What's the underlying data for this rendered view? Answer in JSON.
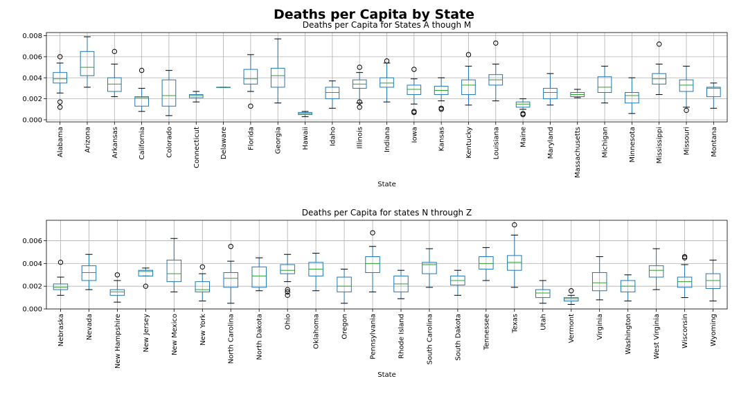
{
  "figure": {
    "title": "Deaths per Capita by State"
  },
  "colors": {
    "box": "#1f77b4",
    "median": "#2ca02c",
    "whisker": "#000000",
    "grid": "#b0b0b0",
    "axis": "#000000"
  },
  "chart_data": [
    {
      "type": "boxplot",
      "title": "Deaths per Capita for States A though M",
      "xlabel": "State",
      "ylabel": "",
      "ylim": [
        -0.0002,
        0.0083
      ],
      "yticks": [
        0.0,
        0.002,
        0.004,
        0.006,
        0.008
      ],
      "ytick_labels": [
        "0.000",
        "0.002",
        "0.004",
        "0.006",
        "0.008"
      ],
      "grid": true,
      "categories": [
        "Alabama",
        "Arizona",
        "Arkansas",
        "California",
        "Colorado",
        "Connecticut",
        "Delaware",
        "Florida",
        "Georgia",
        "Hawaii",
        "Idaho",
        "Illinois",
        "Indiana",
        "Iowa",
        "Kansas",
        "Kentucky",
        "Louisiana",
        "Maine",
        "Maryland",
        "Massachusetts",
        "Michigan",
        "Minnesota",
        "Mississippi",
        "Missouri",
        "Montana"
      ],
      "boxes": [
        {
          "whislo": 0.00255,
          "q1": 0.0035,
          "med": 0.0039,
          "q3": 0.0045,
          "whishi": 0.0054,
          "fliers": [
            0.006,
            0.0017,
            0.0012
          ]
        },
        {
          "whislo": 0.0031,
          "q1": 0.0042,
          "med": 0.005,
          "q3": 0.0065,
          "whishi": 0.0079,
          "fliers": []
        },
        {
          "whislo": 0.0022,
          "q1": 0.0027,
          "med": 0.0034,
          "q3": 0.004,
          "whishi": 0.0053,
          "fliers": [
            0.0065
          ]
        },
        {
          "whislo": 0.0008,
          "q1": 0.0013,
          "med": 0.0021,
          "q3": 0.0022,
          "whishi": 0.003,
          "fliers": [
            0.0047
          ]
        },
        {
          "whislo": 0.0004,
          "q1": 0.0013,
          "med": 0.0023,
          "q3": 0.0038,
          "whishi": 0.0047,
          "fliers": []
        },
        {
          "whislo": 0.0017,
          "q1": 0.0021,
          "med": 0.0023,
          "q3": 0.0024,
          "whishi": 0.0027,
          "fliers": []
        },
        {
          "whislo": 0.0031,
          "q1": 0.0031,
          "med": 0.0031,
          "q3": 0.0031,
          "whishi": 0.0031,
          "fliers": []
        },
        {
          "whislo": 0.0027,
          "q1": 0.0034,
          "med": 0.0039,
          "q3": 0.0048,
          "whishi": 0.0062,
          "fliers": [
            0.0013
          ]
        },
        {
          "whislo": 0.0016,
          "q1": 0.0031,
          "med": 0.0042,
          "q3": 0.0049,
          "whishi": 0.0077,
          "fliers": []
        },
        {
          "whislo": 0.0003,
          "q1": 0.0005,
          "med": 0.0006,
          "q3": 0.0007,
          "whishi": 0.0008,
          "fliers": []
        },
        {
          "whislo": 0.0011,
          "q1": 0.002,
          "med": 0.0026,
          "q3": 0.0031,
          "whishi": 0.0037,
          "fliers": []
        },
        {
          "whislo": 0.0016,
          "q1": 0.003,
          "med": 0.0034,
          "q3": 0.0038,
          "whishi": 0.0045,
          "fliers": [
            0.005,
            0.0017,
            0.0012
          ]
        },
        {
          "whislo": 0.0017,
          "q1": 0.0031,
          "med": 0.0035,
          "q3": 0.004,
          "whishi": 0.0054,
          "fliers": [
            0.0056
          ]
        },
        {
          "whislo": 0.0015,
          "q1": 0.0024,
          "med": 0.0029,
          "q3": 0.0033,
          "whishi": 0.0039,
          "fliers": [
            0.0048,
            0.0008,
            0.0007
          ]
        },
        {
          "whislo": 0.0018,
          "q1": 0.0024,
          "med": 0.0028,
          "q3": 0.0032,
          "whishi": 0.004,
          "fliers": [
            0.0011,
            0.001
          ]
        },
        {
          "whislo": 0.0014,
          "q1": 0.0024,
          "med": 0.0033,
          "q3": 0.0038,
          "whishi": 0.0051,
          "fliers": [
            0.0062
          ]
        },
        {
          "whislo": 0.0018,
          "q1": 0.0033,
          "med": 0.0038,
          "q3": 0.0043,
          "whishi": 0.0053,
          "fliers": [
            0.0073
          ]
        },
        {
          "whislo": 0.001,
          "q1": 0.0012,
          "med": 0.0015,
          "q3": 0.0017,
          "whishi": 0.002,
          "fliers": [
            0.0006,
            0.0005
          ]
        },
        {
          "whislo": 0.0014,
          "q1": 0.002,
          "med": 0.0026,
          "q3": 0.003,
          "whishi": 0.0044,
          "fliers": []
        },
        {
          "whislo": 0.0021,
          "q1": 0.0022,
          "med": 0.0024,
          "q3": 0.0026,
          "whishi": 0.0029,
          "fliers": []
        },
        {
          "whislo": 0.0016,
          "q1": 0.0026,
          "med": 0.0031,
          "q3": 0.0041,
          "whishi": 0.0051,
          "fliers": []
        },
        {
          "whislo": 0.0006,
          "q1": 0.0016,
          "med": 0.0023,
          "q3": 0.0026,
          "whishi": 0.004,
          "fliers": []
        },
        {
          "whislo": 0.0024,
          "q1": 0.0034,
          "med": 0.0039,
          "q3": 0.0044,
          "whishi": 0.0053,
          "fliers": [
            0.0072
          ]
        },
        {
          "whislo": 0.0012,
          "q1": 0.0027,
          "med": 0.0033,
          "q3": 0.0038,
          "whishi": 0.0051,
          "fliers": [
            0.0009
          ]
        },
        {
          "whislo": 0.0011,
          "q1": 0.0022,
          "med": 0.003,
          "q3": 0.0031,
          "whishi": 0.0035,
          "fliers": []
        }
      ]
    },
    {
      "type": "boxplot",
      "title": "Deaths per Capita for states N through Z",
      "xlabel": "State",
      "ylabel": "",
      "ylim": [
        0.0,
        0.0078
      ],
      "yticks": [
        0.0,
        0.002,
        0.004,
        0.006
      ],
      "ytick_labels": [
        "0.000",
        "0.002",
        "0.004",
        "0.006"
      ],
      "grid": true,
      "categories": [
        "Nebraska",
        "Nevada",
        "New Hampshire",
        "New Jersey",
        "New Mexico",
        "New York",
        "North Carolina",
        "North Dakota",
        "Ohio",
        "Oklahoma",
        "Oregon",
        "Pennsylvania",
        "Rhode Island",
        "South Carolina",
        "South Dakota",
        "Tennessee",
        "Texas",
        "Utah",
        "Vermont",
        "Virginia",
        "Washington",
        "West Virginia",
        "Wisconsin",
        "Wyoming"
      ],
      "boxes": [
        {
          "whislo": 0.0012,
          "q1": 0.0017,
          "med": 0.0019,
          "q3": 0.0022,
          "whishi": 0.0028,
          "fliers": [
            0.0041
          ]
        },
        {
          "whislo": 0.0017,
          "q1": 0.0025,
          "med": 0.0032,
          "q3": 0.0038,
          "whishi": 0.0048,
          "fliers": []
        },
        {
          "whislo": 0.0006,
          "q1": 0.0012,
          "med": 0.0015,
          "q3": 0.0017,
          "whishi": 0.0025,
          "fliers": [
            0.003
          ]
        },
        {
          "whislo": 0.0029,
          "q1": 0.0029,
          "med": 0.0033,
          "q3": 0.0034,
          "whishi": 0.0036,
          "fliers": [
            0.002
          ]
        },
        {
          "whislo": 0.0015,
          "q1": 0.0024,
          "med": 0.0031,
          "q3": 0.0043,
          "whishi": 0.0062,
          "fliers": []
        },
        {
          "whislo": 0.0007,
          "q1": 0.0015,
          "med": 0.0017,
          "q3": 0.0024,
          "whishi": 0.0031,
          "fliers": [
            0.0037
          ]
        },
        {
          "whislo": 0.0005,
          "q1": 0.0019,
          "med": 0.0027,
          "q3": 0.0032,
          "whishi": 0.0042,
          "fliers": [
            0.0055
          ]
        },
        {
          "whislo": 0.0016,
          "q1": 0.0019,
          "med": 0.0029,
          "q3": 0.0037,
          "whishi": 0.0045,
          "fliers": []
        },
        {
          "whislo": 0.0024,
          "q1": 0.0031,
          "med": 0.0034,
          "q3": 0.0039,
          "whishi": 0.0048,
          "fliers": [
            0.0017,
            0.0015,
            0.0012
          ]
        },
        {
          "whislo": 0.0016,
          "q1": 0.0029,
          "med": 0.0035,
          "q3": 0.0041,
          "whishi": 0.0049,
          "fliers": []
        },
        {
          "whislo": 0.0005,
          "q1": 0.0015,
          "med": 0.002,
          "q3": 0.0028,
          "whishi": 0.0035,
          "fliers": []
        },
        {
          "whislo": 0.0015,
          "q1": 0.0032,
          "med": 0.004,
          "q3": 0.0046,
          "whishi": 0.0055,
          "fliers": [
            0.0067
          ]
        },
        {
          "whislo": 0.0009,
          "q1": 0.0015,
          "med": 0.0022,
          "q3": 0.0029,
          "whishi": 0.0034,
          "fliers": []
        },
        {
          "whislo": 0.0019,
          "q1": 0.0031,
          "med": 0.0039,
          "q3": 0.0041,
          "whishi": 0.0053,
          "fliers": []
        },
        {
          "whislo": 0.0012,
          "q1": 0.0021,
          "med": 0.0025,
          "q3": 0.0029,
          "whishi": 0.0034,
          "fliers": []
        },
        {
          "whislo": 0.0025,
          "q1": 0.0035,
          "med": 0.004,
          "q3": 0.0046,
          "whishi": 0.0054,
          "fliers": []
        },
        {
          "whislo": 0.0019,
          "q1": 0.0034,
          "med": 0.0041,
          "q3": 0.0047,
          "whishi": 0.0065,
          "fliers": [
            0.0074
          ]
        },
        {
          "whislo": 0.0005,
          "q1": 0.001,
          "med": 0.0014,
          "q3": 0.0017,
          "whishi": 0.0025,
          "fliers": []
        },
        {
          "whislo": 0.0004,
          "q1": 0.0007,
          "med": 0.0009,
          "q3": 0.001,
          "whishi": 0.0012,
          "fliers": [
            0.0016
          ]
        },
        {
          "whislo": 0.0008,
          "q1": 0.0016,
          "med": 0.0023,
          "q3": 0.0032,
          "whishi": 0.0046,
          "fliers": []
        },
        {
          "whislo": 0.0007,
          "q1": 0.0015,
          "med": 0.002,
          "q3": 0.0025,
          "whishi": 0.003,
          "fliers": []
        },
        {
          "whislo": 0.0017,
          "q1": 0.0028,
          "med": 0.0034,
          "q3": 0.0038,
          "whishi": 0.0053,
          "fliers": []
        },
        {
          "whislo": 0.001,
          "q1": 0.0019,
          "med": 0.0024,
          "q3": 0.0028,
          "whishi": 0.0039,
          "fliers": [
            0.0046,
            0.0045
          ]
        },
        {
          "whislo": 0.0007,
          "q1": 0.0018,
          "med": 0.0025,
          "q3": 0.0031,
          "whishi": 0.0043,
          "fliers": []
        }
      ]
    }
  ]
}
